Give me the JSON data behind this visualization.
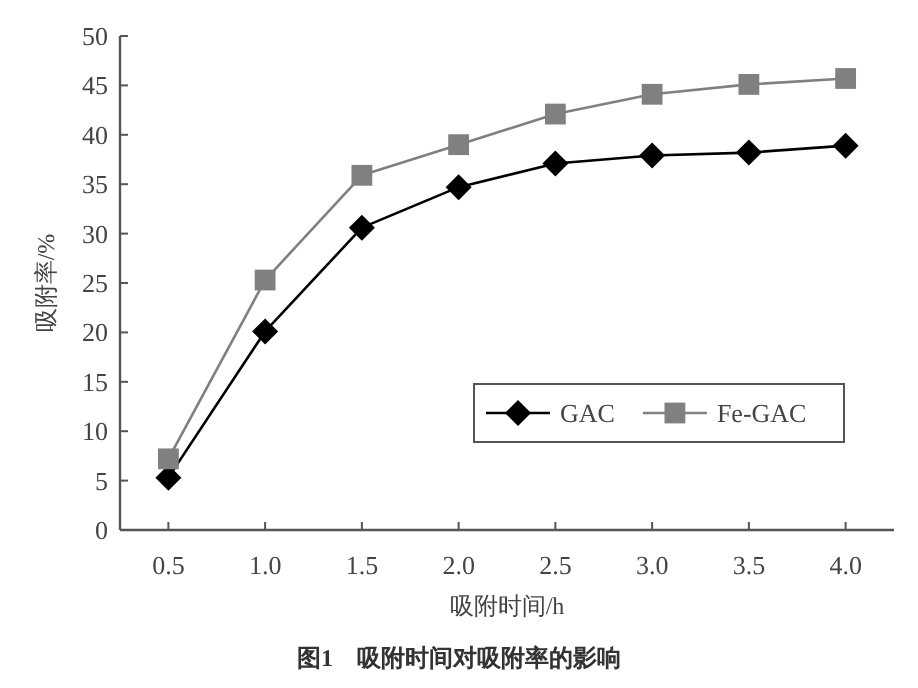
{
  "chart_data": {
    "type": "line",
    "title": "图1　吸附时间对吸附率的影响",
    "xlabel": "吸附时间/h",
    "ylabel": "吸附率/%",
    "x": [
      0.5,
      1.0,
      1.5,
      2.0,
      2.5,
      3.0,
      3.5,
      4.0
    ],
    "series": [
      {
        "name": "GAC",
        "color": "#000000",
        "marker": "diamond",
        "values": [
          5.3,
          20.1,
          30.6,
          34.7,
          37.1,
          37.9,
          38.2,
          38.9
        ]
      },
      {
        "name": "Fe-GAC",
        "color": "#808080",
        "marker": "square",
        "values": [
          7.2,
          25.3,
          35.9,
          39.0,
          42.1,
          44.1,
          45.1,
          45.7
        ]
      }
    ],
    "xlim": [
      0.25,
      4.25
    ],
    "ylim": [
      0,
      50
    ],
    "xticks": [
      0.5,
      {
        "value": 1.0,
        "label": "1.0"
      },
      1.5,
      {
        "value": 2.0,
        "label": "2.0"
      },
      2.5,
      {
        "value": 3.0,
        "label": "3.0"
      },
      3.5,
      {
        "value": 4.0,
        "label": "4.0"
      }
    ],
    "yticks": [
      0,
      5,
      10,
      15,
      20,
      25,
      30,
      35,
      40,
      45,
      50
    ],
    "legend": "bottom right",
    "grid": false
  }
}
